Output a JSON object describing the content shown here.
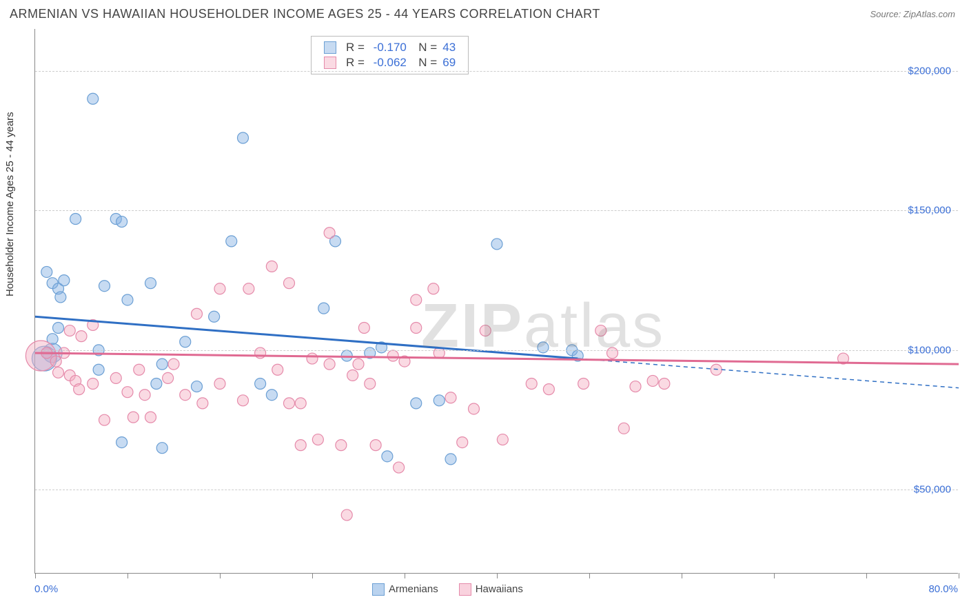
{
  "title": "ARMENIAN VS HAWAIIAN HOUSEHOLDER INCOME AGES 25 - 44 YEARS CORRELATION CHART",
  "source": "Source: ZipAtlas.com",
  "watermark": "ZIPatlas",
  "chart": {
    "type": "scatter",
    "xlim": [
      0,
      80
    ],
    "ylim": [
      20000,
      215000
    ],
    "x_min_label": "0.0%",
    "x_max_label": "80.0%",
    "xtick_positions": [
      0,
      8,
      16,
      24,
      32,
      40,
      48,
      56,
      64,
      72,
      80
    ],
    "ylabel": "Householder Income Ages 25 - 44 years",
    "yticks": [
      {
        "v": 50000,
        "label": "$50,000"
      },
      {
        "v": 100000,
        "label": "$100,000"
      },
      {
        "v": 150000,
        "label": "$150,000"
      },
      {
        "v": 200000,
        "label": "$200,000"
      }
    ],
    "background_color": "#ffffff",
    "grid_color": "#cccccc",
    "axis_color": "#888888",
    "tick_label_color": "#3b6fd6"
  },
  "series": [
    {
      "name": "Armenians",
      "fill": "rgba(130,175,226,0.45)",
      "stroke": "#6b9fd4",
      "line_color": "#2f6fc4",
      "R": "-0.170",
      "N": "43",
      "trend": {
        "x1": 0,
        "y1": 112000,
        "x2": 47,
        "y2": 97000,
        "x1_dash": 47,
        "y1_dash": 97000,
        "x2_dash": 80,
        "y2_dash": 86500
      },
      "points": [
        {
          "x": 1,
          "y": 128000
        },
        {
          "x": 1.5,
          "y": 124000
        },
        {
          "x": 2,
          "y": 122000
        },
        {
          "x": 2.2,
          "y": 119000
        },
        {
          "x": 2.5,
          "y": 125000
        },
        {
          "x": 2,
          "y": 108000
        },
        {
          "x": 1.5,
          "y": 104000
        },
        {
          "x": 1,
          "y": 99000
        },
        {
          "x": 1.5,
          "y": 99000,
          "r": 14
        },
        {
          "x": 0.8,
          "y": 97000,
          "r": 18
        },
        {
          "x": 3.5,
          "y": 147000
        },
        {
          "x": 5,
          "y": 190000
        },
        {
          "x": 7,
          "y": 147000
        },
        {
          "x": 7.5,
          "y": 146000
        },
        {
          "x": 6,
          "y": 123000
        },
        {
          "x": 8,
          "y": 118000
        },
        {
          "x": 10,
          "y": 124000
        },
        {
          "x": 5.5,
          "y": 100000
        },
        {
          "x": 7.5,
          "y": 67000
        },
        {
          "x": 5.5,
          "y": 93000
        },
        {
          "x": 10.5,
          "y": 88000
        },
        {
          "x": 11,
          "y": 95000
        },
        {
          "x": 11,
          "y": 65000
        },
        {
          "x": 13,
          "y": 103000
        },
        {
          "x": 14,
          "y": 87000
        },
        {
          "x": 15.5,
          "y": 112000
        },
        {
          "x": 17,
          "y": 139000
        },
        {
          "x": 18,
          "y": 176000
        },
        {
          "x": 26,
          "y": 139000
        },
        {
          "x": 25,
          "y": 115000
        },
        {
          "x": 27,
          "y": 98000
        },
        {
          "x": 30.5,
          "y": 62000
        },
        {
          "x": 29,
          "y": 99000
        },
        {
          "x": 30,
          "y": 101000
        },
        {
          "x": 33,
          "y": 81000
        },
        {
          "x": 35,
          "y": 82000
        },
        {
          "x": 36,
          "y": 61000
        },
        {
          "x": 40,
          "y": 138000
        },
        {
          "x": 44,
          "y": 101000
        },
        {
          "x": 46.5,
          "y": 100000
        },
        {
          "x": 47,
          "y": 98000
        },
        {
          "x": 20.5,
          "y": 84000
        },
        {
          "x": 19.5,
          "y": 88000
        }
      ]
    },
    {
      "name": "Hawaiians",
      "fill": "rgba(244,173,194,0.45)",
      "stroke": "#e58aaa",
      "line_color": "#e06a92",
      "R": "-0.062",
      "N": "69",
      "trend": {
        "x1": 0,
        "y1": 99000,
        "x2": 80,
        "y2": 95000
      },
      "points": [
        {
          "x": 0.5,
          "y": 98000,
          "r": 22
        },
        {
          "x": 1,
          "y": 99000
        },
        {
          "x": 1.8,
          "y": 96000
        },
        {
          "x": 2.5,
          "y": 99000
        },
        {
          "x": 2,
          "y": 92000
        },
        {
          "x": 3,
          "y": 91000
        },
        {
          "x": 3,
          "y": 107000
        },
        {
          "x": 4,
          "y": 105000
        },
        {
          "x": 5,
          "y": 109000
        },
        {
          "x": 3.5,
          "y": 89000
        },
        {
          "x": 3.8,
          "y": 86000
        },
        {
          "x": 5,
          "y": 88000
        },
        {
          "x": 6,
          "y": 75000
        },
        {
          "x": 7,
          "y": 90000
        },
        {
          "x": 8,
          "y": 85000
        },
        {
          "x": 8.5,
          "y": 76000
        },
        {
          "x": 9,
          "y": 93000
        },
        {
          "x": 9.5,
          "y": 84000
        },
        {
          "x": 10,
          "y": 76000
        },
        {
          "x": 11.5,
          "y": 90000
        },
        {
          "x": 12,
          "y": 95000
        },
        {
          "x": 13,
          "y": 84000
        },
        {
          "x": 14,
          "y": 113000
        },
        {
          "x": 14.5,
          "y": 81000
        },
        {
          "x": 16,
          "y": 88000
        },
        {
          "x": 16,
          "y": 122000
        },
        {
          "x": 18,
          "y": 82000
        },
        {
          "x": 18.5,
          "y": 122000
        },
        {
          "x": 19.5,
          "y": 99000
        },
        {
          "x": 20.5,
          "y": 130000
        },
        {
          "x": 21,
          "y": 93000
        },
        {
          "x": 22,
          "y": 81000
        },
        {
          "x": 22,
          "y": 124000
        },
        {
          "x": 23,
          "y": 81000
        },
        {
          "x": 23,
          "y": 66000
        },
        {
          "x": 24,
          "y": 97000
        },
        {
          "x": 24.5,
          "y": 68000
        },
        {
          "x": 25.5,
          "y": 142000
        },
        {
          "x": 25.5,
          "y": 95000
        },
        {
          "x": 26.5,
          "y": 66000
        },
        {
          "x": 27,
          "y": 41000
        },
        {
          "x": 27.5,
          "y": 91000
        },
        {
          "x": 28,
          "y": 95000
        },
        {
          "x": 28.5,
          "y": 108000
        },
        {
          "x": 29.5,
          "y": 66000
        },
        {
          "x": 31,
          "y": 98000
        },
        {
          "x": 31.5,
          "y": 58000
        },
        {
          "x": 32,
          "y": 96000
        },
        {
          "x": 33,
          "y": 118000
        },
        {
          "x": 33,
          "y": 108000
        },
        {
          "x": 34.5,
          "y": 122000
        },
        {
          "x": 35,
          "y": 99000
        },
        {
          "x": 36,
          "y": 83000
        },
        {
          "x": 37,
          "y": 67000
        },
        {
          "x": 38,
          "y": 79000
        },
        {
          "x": 39,
          "y": 107000
        },
        {
          "x": 40.5,
          "y": 68000
        },
        {
          "x": 43,
          "y": 88000
        },
        {
          "x": 44.5,
          "y": 86000
        },
        {
          "x": 47.5,
          "y": 88000
        },
        {
          "x": 49,
          "y": 107000
        },
        {
          "x": 50,
          "y": 99000
        },
        {
          "x": 51,
          "y": 72000
        },
        {
          "x": 52,
          "y": 87000
        },
        {
          "x": 53.5,
          "y": 89000
        },
        {
          "x": 54.5,
          "y": 88000
        },
        {
          "x": 59,
          "y": 93000
        },
        {
          "x": 70,
          "y": 97000
        },
        {
          "x": 29,
          "y": 88000
        }
      ]
    }
  ],
  "bottom_legend": [
    {
      "label": "Armenians",
      "fill": "rgba(130,175,226,0.55)",
      "stroke": "#6b9fd4"
    },
    {
      "label": "Hawaiians",
      "fill": "rgba(244,173,194,0.55)",
      "stroke": "#e58aaa"
    }
  ]
}
